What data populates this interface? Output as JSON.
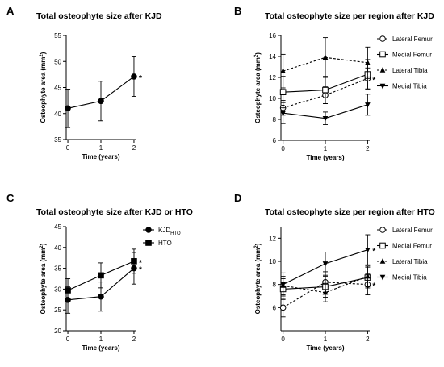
{
  "chart_data": [
    {
      "id": "A",
      "panel_label": "A",
      "type": "line",
      "title": "Total osteophyte size after KJD",
      "xlabel": "Time (years)",
      "ylabel": "Osteophyte area (mm²)",
      "ylabel_parts": [
        "Osteophyte area (mm",
        "2",
        ")"
      ],
      "x": [
        0,
        1,
        2
      ],
      "x_ticks": [
        0,
        1,
        2
      ],
      "x_tick_labels": [
        "0",
        "1",
        "2"
      ],
      "ylim": [
        35,
        55
      ],
      "y_ticks": [
        35,
        40,
        45,
        50,
        55
      ],
      "y_tick_labels": [
        "35",
        "40",
        "45",
        "50",
        "55"
      ],
      "legend": "none",
      "series": [
        {
          "values": [
            41.0,
            42.4,
            47.1
          ],
          "err": [
            3.7,
            3.8,
            3.8
          ],
          "marker": "circle-filled",
          "dash": "solid",
          "asterisks": [
            "",
            "",
            "*"
          ]
        }
      ]
    },
    {
      "id": "B",
      "panel_label": "B",
      "type": "line",
      "title": "Total osteophyte size per region after KJD",
      "xlabel": "Time (years)",
      "ylabel": "Osteophyte area (mm²)",
      "ylabel_parts": [
        "Osteophyte area (mm",
        "2",
        ")"
      ],
      "x": [
        0,
        1,
        2
      ],
      "x_ticks": [
        0,
        1,
        2
      ],
      "x_tick_labels": [
        "0",
        "1",
        "2"
      ],
      "ylim": [
        6,
        16
      ],
      "y_ticks": [
        6,
        8,
        10,
        12,
        14,
        16
      ],
      "y_tick_labels": [
        "6",
        "8",
        "10",
        "12",
        "14",
        "16"
      ],
      "legend": "right",
      "series": [
        {
          "name": "Lateral Femur",
          "name_parts": [
            "Lateral Femur"
          ],
          "values": [
            9.1,
            10.3,
            11.9
          ],
          "err": [
            0.7,
            0.8,
            1.0
          ],
          "marker": "circle-open",
          "dash": "dashed",
          "asterisks": [
            "",
            "",
            "*"
          ]
        },
        {
          "name": "Medial Femur",
          "name_parts": [
            "Medial Femur"
          ],
          "values": [
            10.6,
            10.8,
            12.3
          ],
          "err": [
            1.5,
            1.3,
            1.4
          ],
          "marker": "square-open",
          "dash": "solid",
          "asterisks": [
            "",
            "",
            ""
          ]
        },
        {
          "name": "Lateral Tibia",
          "name_parts": [
            "Lateral Tibia"
          ],
          "values": [
            12.6,
            13.9,
            13.4
          ],
          "err": [
            1.6,
            1.9,
            1.5
          ],
          "marker": "triangle-up-filled",
          "dash": "dashed",
          "asterisks": [
            "",
            "",
            ""
          ]
        },
        {
          "name": "Medial Tibia",
          "name_parts": [
            "Medial Tibia"
          ],
          "values": [
            8.6,
            8.1,
            9.4
          ],
          "err": [
            1.0,
            0.6,
            1.0
          ],
          "marker": "triangle-down-filled",
          "dash": "solid",
          "asterisks": [
            "",
            "",
            ""
          ]
        }
      ]
    },
    {
      "id": "C",
      "panel_label": "C",
      "type": "line",
      "title": "Total osteophyte size after KJD or HTO",
      "xlabel": "Time (years)",
      "ylabel": "Osteophyte area (mm²)",
      "ylabel_parts": [
        "Osteophyte area (mm",
        "2",
        ")"
      ],
      "x": [
        0,
        1,
        2
      ],
      "x_ticks": [
        0,
        1,
        2
      ],
      "x_tick_labels": [
        "0",
        "1",
        "2"
      ],
      "ylim": [
        20,
        45
      ],
      "y_ticks": [
        20,
        25,
        30,
        35,
        40,
        45
      ],
      "y_tick_labels": [
        "20",
        "25",
        "30",
        "35",
        "40",
        "45"
      ],
      "legend": "right",
      "series": [
        {
          "name": "KJDHTO",
          "name_parts": [
            "KJD",
            "HTO"
          ],
          "values": [
            27.4,
            28.2,
            35.0
          ],
          "err": [
            3.2,
            3.5,
            3.8
          ],
          "marker": "circle-filled",
          "dash": "solid",
          "asterisks": [
            "",
            "",
            "*"
          ]
        },
        {
          "name": "HTO",
          "name_parts": [
            "HTO"
          ],
          "values": [
            29.7,
            33.3,
            36.7
          ],
          "err": [
            2.8,
            3.0,
            2.9
          ],
          "marker": "square-filled",
          "dash": "solid",
          "asterisks": [
            "",
            "",
            "*"
          ]
        }
      ]
    },
    {
      "id": "D",
      "panel_label": "D",
      "type": "line",
      "title": "Total osteophyte size per region after HTO",
      "xlabel": "Time (years)",
      "ylabel": "Osteophyte area (mm²)",
      "ylabel_parts": [
        "Osteophyte area (mm",
        "2",
        ")"
      ],
      "x": [
        0,
        1,
        2
      ],
      "x_ticks": [
        0,
        1,
        2
      ],
      "x_tick_labels": [
        "0",
        "1",
        "2"
      ],
      "ylim": [
        4,
        13
      ],
      "y_ticks": [
        6,
        8,
        10,
        12
      ],
      "y_tick_labels": [
        "6",
        "8",
        "10",
        "12"
      ],
      "legend": "right",
      "series": [
        {
          "name": "Lateral Femur",
          "name_parts": [
            "Lateral Femur"
          ],
          "values": [
            6.0,
            8.2,
            8.0
          ],
          "err": [
            0.8,
            0.9,
            0.9
          ],
          "marker": "circle-open",
          "dash": "dashed",
          "asterisks": [
            "",
            "",
            "*"
          ]
        },
        {
          "name": "Medial Femur",
          "name_parts": [
            "Medial Femur"
          ],
          "values": [
            7.6,
            7.8,
            8.6
          ],
          "err": [
            0.9,
            0.9,
            0.9
          ],
          "marker": "square-open",
          "dash": "solid",
          "asterisks": [
            "",
            "",
            ""
          ]
        },
        {
          "name": "Lateral Tibia",
          "name_parts": [
            "Lateral Tibia"
          ],
          "values": [
            7.9,
            7.3,
            8.7
          ],
          "err": [
            0.8,
            0.8,
            0.9
          ],
          "marker": "triangle-up-filled",
          "dash": "dashed",
          "asterisks": [
            "",
            "",
            ""
          ]
        },
        {
          "name": "Medial Tibia",
          "name_parts": [
            "Medial Tibia"
          ],
          "values": [
            8.0,
            9.8,
            11.0
          ],
          "err": [
            1.0,
            1.0,
            1.3
          ],
          "marker": "triangle-down-filled",
          "dash": "solid",
          "asterisks": [
            "",
            "",
            "*"
          ]
        }
      ]
    }
  ]
}
